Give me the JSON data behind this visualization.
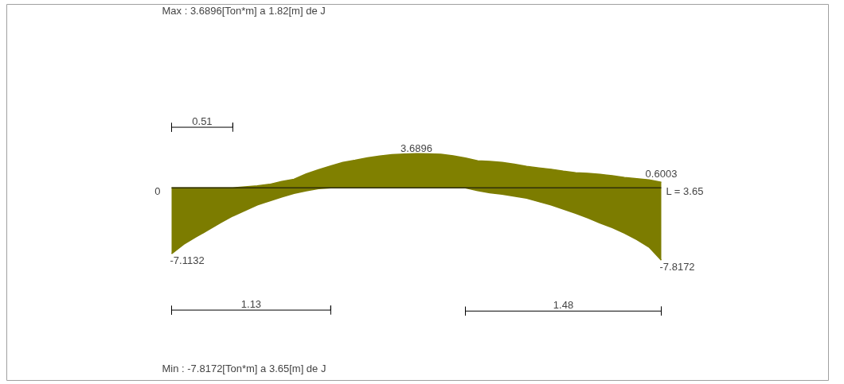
{
  "chart_data": {
    "type": "area",
    "title": "Max : 3.6896[Ton*m]  a  1.82[m]  de  J",
    "tick_labels": false,
    "ylim": [
      -20.8,
      19.8
    ],
    "categories": [
      null,
      null,
      null,
      null,
      null,
      null,
      null,
      null,
      null,
      null,
      null,
      null,
      null,
      null,
      null,
      null,
      null,
      null,
      null,
      null,
      null,
      null,
      null,
      null,
      null,
      null,
      null,
      null,
      null,
      null,
      null,
      null,
      null,
      null,
      null,
      null,
      null,
      null,
      null,
      null,
      null
    ],
    "series": [
      {
        "color": "#808000",
        "values": [
          0,
          0,
          0,
          0,
          0,
          0,
          0.1,
          0.2,
          0.37,
          0.69,
          0.92,
          1.5,
          1.95,
          2.35,
          2.75,
          2.97,
          3.23,
          3.43,
          3.58,
          3.65,
          3.6896,
          3.66,
          3.61,
          3.45,
          3.22,
          2.92,
          2.85,
          2.75,
          2.55,
          2.32,
          2.15,
          2.0,
          1.8,
          1.63,
          1.55,
          1.46,
          1.3,
          1.12,
          0.98,
          0.85,
          0.6003
        ],
        "value_labels": [
          "0",
          null,
          null,
          null,
          null,
          null,
          null,
          null,
          null,
          null,
          null,
          null,
          null,
          null,
          null,
          null,
          null,
          null,
          null,
          null,
          "3.6896",
          null,
          null,
          null,
          null,
          null,
          null,
          null,
          null,
          null,
          null,
          null,
          null,
          null,
          null,
          null,
          null,
          null,
          null,
          null,
          "0.6003"
        ]
      },
      {
        "color": "#7c7c00",
        "values": [
          -7.1132,
          -6.09,
          -5.3,
          -4.55,
          -3.78,
          -3.05,
          -2.45,
          -1.85,
          -1.42,
          -1.0,
          -0.6,
          -0.33,
          -0.1,
          0,
          0,
          0,
          0,
          0,
          0,
          0,
          0,
          0,
          0,
          0,
          0,
          -0.3,
          -0.54,
          -0.69,
          -0.9,
          -1.12,
          -1.5,
          -1.85,
          -2.3,
          -2.75,
          -3.25,
          -3.8,
          -4.3,
          -4.9,
          -5.6,
          -6.4,
          -7.8172
        ],
        "value_labels": [
          "-7.1132",
          null,
          null,
          null,
          null,
          null,
          null,
          null,
          null,
          null,
          null,
          null,
          null,
          null,
          null,
          null,
          null,
          null,
          null,
          null,
          null,
          null,
          null,
          null,
          null,
          null,
          null,
          null,
          null,
          null,
          null,
          null,
          null,
          null,
          null,
          null,
          null,
          null,
          null,
          null,
          "-7.8172"
        ]
      }
    ],
    "annotations": [
      "0.51",
      "1.13",
      "1.48",
      "L = 3.65",
      "Min : -7.8172[Ton*m]  a  3.65[m]  de  J"
    ]
  }
}
